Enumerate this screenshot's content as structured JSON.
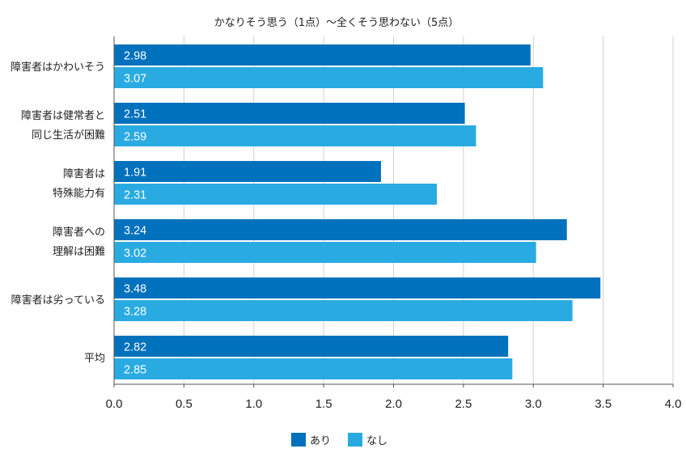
{
  "chart_data": {
    "type": "bar",
    "orientation": "horizontal",
    "title": "かなりそう思う（1点）～全くそう思わない（5点）",
    "categories": [
      [
        "障害者はかわいそう"
      ],
      [
        "障害者は健常者と",
        "同じ生活が困難"
      ],
      [
        "障害者は",
        "特殊能力有"
      ],
      [
        "障害者への",
        "理解は困難"
      ],
      [
        "障害者は劣っている"
      ],
      [
        "平均"
      ]
    ],
    "series": [
      {
        "name": "あり",
        "color": "#0071bc",
        "values": [
          2.98,
          2.51,
          1.91,
          3.24,
          3.48,
          2.82
        ]
      },
      {
        "name": "なし",
        "color": "#29abe2",
        "values": [
          3.07,
          2.59,
          2.31,
          3.02,
          3.28,
          2.85
        ]
      }
    ],
    "value_labels": [
      [
        "2.98",
        "2.51",
        "1.91",
        "3.24",
        "3.48",
        "2.82"
      ],
      [
        "3.07",
        "2.59",
        "2.31",
        "3.02",
        "3.28",
        "2.85"
      ]
    ],
    "xlim": [
      0,
      4
    ],
    "xticks": [
      0,
      0.5,
      1,
      1.5,
      2,
      2.5,
      3,
      3.5,
      4
    ],
    "xtick_labels": [
      "0.0",
      "0.5",
      "1.0",
      "1.5",
      "2.0",
      "2.5",
      "3.0",
      "3.5",
      "4.0"
    ],
    "grid": "vertical",
    "legend_position": "bottom-center"
  }
}
